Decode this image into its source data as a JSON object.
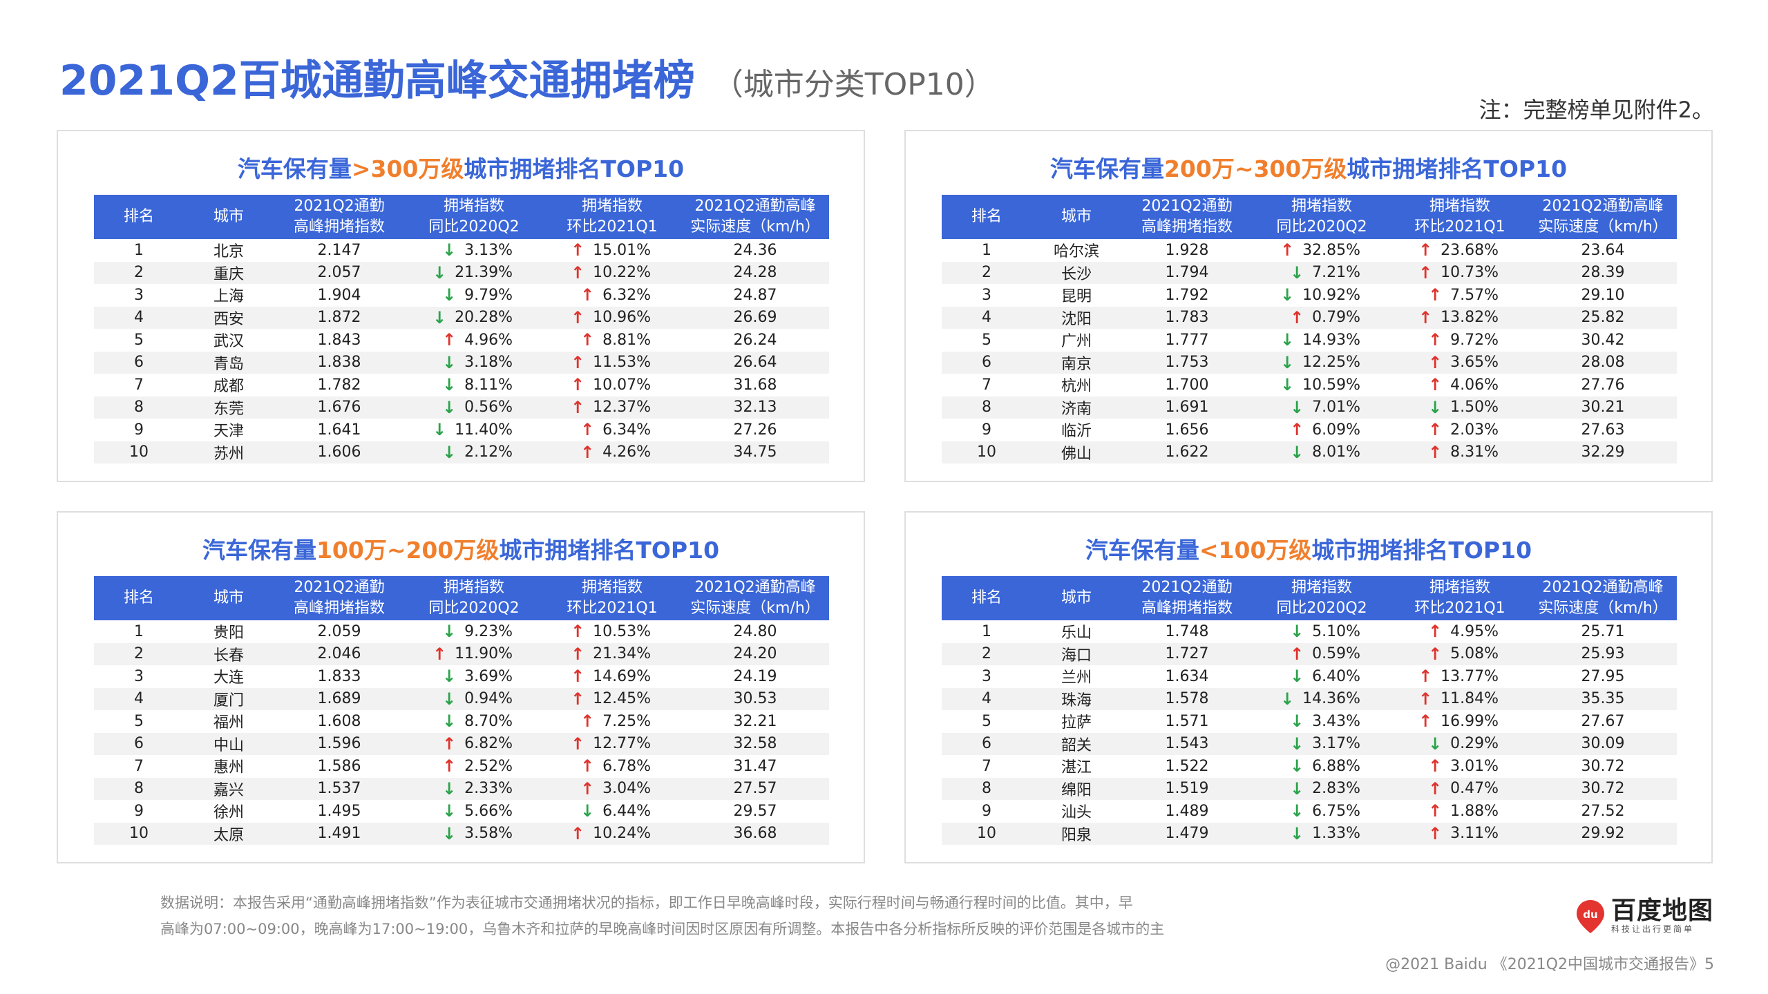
{
  "header": {
    "title": "2021Q2百城通勤高峰交通拥堵榜",
    "subtitle": "（城市分类TOP10）",
    "note": "注：完整榜单见附件2。"
  },
  "columns": [
    "排名",
    "城市",
    "2021Q2通勤\n高峰拥堵指数",
    "拥堵指数\n同比2020Q2",
    "拥堵指数\n环比2021Q1",
    "2021Q2通勤高峰\n实际速度（km/h）"
  ],
  "panels": [
    {
      "title_pre": "汽车保有量",
      "title_hl": ">300万级",
      "title_post": "城市拥堵排名TOP10",
      "rows": [
        {
          "rank": "1",
          "city": "北京",
          "index": "2.147",
          "yoy_dir": "down",
          "yoy": "3.13%",
          "qoq_dir": "up",
          "qoq": "15.01%",
          "speed": "24.36"
        },
        {
          "rank": "2",
          "city": "重庆",
          "index": "2.057",
          "yoy_dir": "down",
          "yoy": "21.39%",
          "qoq_dir": "up",
          "qoq": "10.22%",
          "speed": "24.28"
        },
        {
          "rank": "3",
          "city": "上海",
          "index": "1.904",
          "yoy_dir": "down",
          "yoy": "9.79%",
          "qoq_dir": "up",
          "qoq": "6.32%",
          "speed": "24.87"
        },
        {
          "rank": "4",
          "city": "西安",
          "index": "1.872",
          "yoy_dir": "down",
          "yoy": "20.28%",
          "qoq_dir": "up",
          "qoq": "10.96%",
          "speed": "26.69"
        },
        {
          "rank": "5",
          "city": "武汉",
          "index": "1.843",
          "yoy_dir": "up",
          "yoy": "4.96%",
          "qoq_dir": "up",
          "qoq": "8.81%",
          "speed": "26.24"
        },
        {
          "rank": "6",
          "city": "青岛",
          "index": "1.838",
          "yoy_dir": "down",
          "yoy": "3.18%",
          "qoq_dir": "up",
          "qoq": "11.53%",
          "speed": "26.64"
        },
        {
          "rank": "7",
          "city": "成都",
          "index": "1.782",
          "yoy_dir": "down",
          "yoy": "8.11%",
          "qoq_dir": "up",
          "qoq": "10.07%",
          "speed": "31.68"
        },
        {
          "rank": "8",
          "city": "东莞",
          "index": "1.676",
          "yoy_dir": "down",
          "yoy": "0.56%",
          "qoq_dir": "up",
          "qoq": "12.37%",
          "speed": "32.13"
        },
        {
          "rank": "9",
          "city": "天津",
          "index": "1.641",
          "yoy_dir": "down",
          "yoy": "11.40%",
          "qoq_dir": "up",
          "qoq": "6.34%",
          "speed": "27.26"
        },
        {
          "rank": "10",
          "city": "苏州",
          "index": "1.606",
          "yoy_dir": "down",
          "yoy": "2.12%",
          "qoq_dir": "up",
          "qoq": "4.26%",
          "speed": "34.75"
        }
      ]
    },
    {
      "title_pre": "汽车保有量",
      "title_hl": "200万~300万级",
      "title_post": "城市拥堵排名TOP10",
      "rows": [
        {
          "rank": "1",
          "city": "哈尔滨",
          "index": "1.928",
          "yoy_dir": "up",
          "yoy": "32.85%",
          "qoq_dir": "up",
          "qoq": "23.68%",
          "speed": "23.64"
        },
        {
          "rank": "2",
          "city": "长沙",
          "index": "1.794",
          "yoy_dir": "down",
          "yoy": "7.21%",
          "qoq_dir": "up",
          "qoq": "10.73%",
          "speed": "28.39"
        },
        {
          "rank": "3",
          "city": "昆明",
          "index": "1.792",
          "yoy_dir": "down",
          "yoy": "10.92%",
          "qoq_dir": "up",
          "qoq": "7.57%",
          "speed": "29.10"
        },
        {
          "rank": "4",
          "city": "沈阳",
          "index": "1.783",
          "yoy_dir": "up",
          "yoy": "0.79%",
          "qoq_dir": "up",
          "qoq": "13.82%",
          "speed": "25.82"
        },
        {
          "rank": "5",
          "city": "广州",
          "index": "1.777",
          "yoy_dir": "down",
          "yoy": "14.93%",
          "qoq_dir": "up",
          "qoq": "9.72%",
          "speed": "30.42"
        },
        {
          "rank": "6",
          "city": "南京",
          "index": "1.753",
          "yoy_dir": "down",
          "yoy": "12.25%",
          "qoq_dir": "up",
          "qoq": "3.65%",
          "speed": "28.08"
        },
        {
          "rank": "7",
          "city": "杭州",
          "index": "1.700",
          "yoy_dir": "down",
          "yoy": "10.59%",
          "qoq_dir": "up",
          "qoq": "4.06%",
          "speed": "27.76"
        },
        {
          "rank": "8",
          "city": "济南",
          "index": "1.691",
          "yoy_dir": "down",
          "yoy": "7.01%",
          "qoq_dir": "down",
          "qoq": "1.50%",
          "speed": "30.21"
        },
        {
          "rank": "9",
          "city": "临沂",
          "index": "1.656",
          "yoy_dir": "up",
          "yoy": "6.09%",
          "qoq_dir": "up",
          "qoq": "2.03%",
          "speed": "27.63"
        },
        {
          "rank": "10",
          "city": "佛山",
          "index": "1.622",
          "yoy_dir": "down",
          "yoy": "8.01%",
          "qoq_dir": "up",
          "qoq": "8.31%",
          "speed": "32.29"
        }
      ]
    },
    {
      "title_pre": "汽车保有量",
      "title_hl": "100万~200万级",
      "title_post": "城市拥堵排名TOP10",
      "rows": [
        {
          "rank": "1",
          "city": "贵阳",
          "index": "2.059",
          "yoy_dir": "down",
          "yoy": "9.23%",
          "qoq_dir": "up",
          "qoq": "10.53%",
          "speed": "24.80"
        },
        {
          "rank": "2",
          "city": "长春",
          "index": "2.046",
          "yoy_dir": "up",
          "yoy": "11.90%",
          "qoq_dir": "up",
          "qoq": "21.34%",
          "speed": "24.20"
        },
        {
          "rank": "3",
          "city": "大连",
          "index": "1.833",
          "yoy_dir": "down",
          "yoy": "3.69%",
          "qoq_dir": "up",
          "qoq": "14.69%",
          "speed": "24.19"
        },
        {
          "rank": "4",
          "city": "厦门",
          "index": "1.689",
          "yoy_dir": "down",
          "yoy": "0.94%",
          "qoq_dir": "up",
          "qoq": "12.45%",
          "speed": "30.53"
        },
        {
          "rank": "5",
          "city": "福州",
          "index": "1.608",
          "yoy_dir": "down",
          "yoy": "8.70%",
          "qoq_dir": "up",
          "qoq": "7.25%",
          "speed": "32.21"
        },
        {
          "rank": "6",
          "city": "中山",
          "index": "1.596",
          "yoy_dir": "up",
          "yoy": "6.82%",
          "qoq_dir": "up",
          "qoq": "12.77%",
          "speed": "32.58"
        },
        {
          "rank": "7",
          "city": "惠州",
          "index": "1.586",
          "yoy_dir": "up",
          "yoy": "2.52%",
          "qoq_dir": "up",
          "qoq": "6.78%",
          "speed": "31.47"
        },
        {
          "rank": "8",
          "city": "嘉兴",
          "index": "1.537",
          "yoy_dir": "down",
          "yoy": "2.33%",
          "qoq_dir": "up",
          "qoq": "3.04%",
          "speed": "27.57"
        },
        {
          "rank": "9",
          "city": "徐州",
          "index": "1.495",
          "yoy_dir": "down",
          "yoy": "5.66%",
          "qoq_dir": "down",
          "qoq": "6.44%",
          "speed": "29.57"
        },
        {
          "rank": "10",
          "city": "太原",
          "index": "1.491",
          "yoy_dir": "down",
          "yoy": "3.58%",
          "qoq_dir": "up",
          "qoq": "10.24%",
          "speed": "36.68"
        }
      ]
    },
    {
      "title_pre": "汽车保有量",
      "title_hl": "<100万级",
      "title_post": "城市拥堵排名TOP10",
      "rows": [
        {
          "rank": "1",
          "city": "乐山",
          "index": "1.748",
          "yoy_dir": "down",
          "yoy": "5.10%",
          "qoq_dir": "up",
          "qoq": "4.95%",
          "speed": "25.71"
        },
        {
          "rank": "2",
          "city": "海口",
          "index": "1.727",
          "yoy_dir": "up",
          "yoy": "0.59%",
          "qoq_dir": "up",
          "qoq": "5.08%",
          "speed": "25.93"
        },
        {
          "rank": "3",
          "city": "兰州",
          "index": "1.634",
          "yoy_dir": "down",
          "yoy": "6.40%",
          "qoq_dir": "up",
          "qoq": "13.77%",
          "speed": "27.95"
        },
        {
          "rank": "4",
          "city": "珠海",
          "index": "1.578",
          "yoy_dir": "down",
          "yoy": "14.36%",
          "qoq_dir": "up",
          "qoq": "11.84%",
          "speed": "35.35"
        },
        {
          "rank": "5",
          "city": "拉萨",
          "index": "1.571",
          "yoy_dir": "down",
          "yoy": "3.43%",
          "qoq_dir": "up",
          "qoq": "16.99%",
          "speed": "27.67"
        },
        {
          "rank": "6",
          "city": "韶关",
          "index": "1.543",
          "yoy_dir": "down",
          "yoy": "3.17%",
          "qoq_dir": "down",
          "qoq": "0.29%",
          "speed": "30.09"
        },
        {
          "rank": "7",
          "city": "湛江",
          "index": "1.522",
          "yoy_dir": "down",
          "yoy": "6.88%",
          "qoq_dir": "up",
          "qoq": "3.01%",
          "speed": "30.72"
        },
        {
          "rank": "8",
          "city": "绵阳",
          "index": "1.519",
          "yoy_dir": "down",
          "yoy": "2.83%",
          "qoq_dir": "up",
          "qoq": "0.47%",
          "speed": "30.72"
        },
        {
          "rank": "9",
          "city": "汕头",
          "index": "1.489",
          "yoy_dir": "down",
          "yoy": "6.75%",
          "qoq_dir": "up",
          "qoq": "1.88%",
          "speed": "27.52"
        },
        {
          "rank": "10",
          "city": "阳泉",
          "index": "1.479",
          "yoy_dir": "down",
          "yoy": "1.33%",
          "qoq_dir": "up",
          "qoq": "3.11%",
          "speed": "29.92"
        }
      ]
    }
  ],
  "footer": {
    "note_line1": "数据说明：本报告采用“通勤高峰拥堵指数”作为表征城市交通拥堵状况的指标，即工作日早晚高峰时段，实际行程时间与畅通行程时间的比值。其中，早",
    "note_line2": "高峰为07:00~09:00，晚高峰为17:00~19:00，乌鲁木齐和拉萨的早晚高峰时间因时区原因有所调整。本报告中各分析指标所反映的评价范围是各城市的主",
    "logo_name": "百度地图",
    "logo_slogan": "科技让出行更简单",
    "logo_pin": "du",
    "copyright": "@2021 Baidu 《2021Q2中国城市交通报告》5"
  },
  "colors": {
    "accent": "#3a66d8",
    "highlight": "#f07f2d",
    "up_arrow": "#e0322b",
    "down_arrow": "#2aa34a"
  },
  "icons": {
    "up": "arrow-up-icon",
    "down": "arrow-down-icon"
  }
}
